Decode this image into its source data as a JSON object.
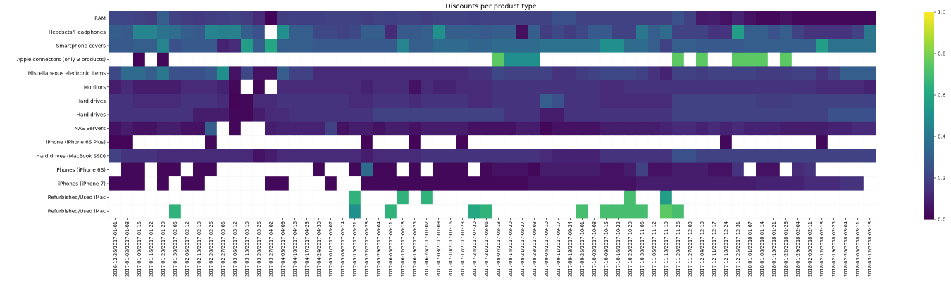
{
  "chart_data": {
    "type": "heatmap",
    "title": "Discounts per product type",
    "colormap": "viridis",
    "missing_color": "#ffffff",
    "vmin": 0.0,
    "vmax": 1.0,
    "colorbar_ticks": [
      "0.0",
      "0.2",
      "0.4",
      "0.6",
      "0.8",
      "1.0"
    ],
    "rows": [
      "RAM",
      "Headsets/Headphones",
      "Smartphone covers",
      "Apple connectors (only 3 products)",
      "Miscellaneous electronic items",
      "Monitors",
      "Hard drives",
      "Hard drives",
      "NAS Servers",
      "iPhone (iPhone 6S Plus)",
      "Hard drives (MacBook SSD)",
      "iPhones (iPhone 6S)",
      "iPhones (iPhone 7)",
      "Refurbished/Used iMac",
      "Refurbished/Used iMac"
    ],
    "columns": [
      "2016-12-26/2017-01-01",
      "2017-01-02/2017-01-08",
      "2017-01-09/2017-01-15",
      "2017-01-16/2017-01-22",
      "2017-01-23/2017-01-29",
      "2017-01-30/2017-02-05",
      "2017-02-06/2017-02-12",
      "2017-02-13/2017-02-19",
      "2017-02-20/2017-02-26",
      "2017-02-27/2017-03-05",
      "2017-03-06/2017-03-12",
      "2017-03-13/2017-03-19",
      "2017-03-20/2017-03-26",
      "2017-03-27/2017-04-02",
      "2017-04-03/2017-04-09",
      "2017-04-10/2017-04-16",
      "2017-04-17/2017-04-23",
      "2017-04-24/2017-04-30",
      "2017-05-01/2017-05-07",
      "2017-05-08/2017-05-14",
      "2017-05-15/2017-05-21",
      "2017-05-22/2017-05-28",
      "2017-05-29/2017-06-04",
      "2017-06-05/2017-06-11",
      "2017-06-12/2017-06-18",
      "2017-06-19/2017-06-25",
      "2017-06-26/2017-07-02",
      "2017-07-03/2017-07-09",
      "2017-07-10/2017-07-16",
      "2017-07-17/2017-07-23",
      "2017-07-24/2017-07-30",
      "2017-07-31/2017-08-06",
      "2017-08-07/2017-08-13",
      "2017-08-14/2017-08-20",
      "2017-08-21/2017-08-27",
      "2017-08-28/2017-09-03",
      "2017-09-04/2017-09-10",
      "2017-09-11/2017-09-17",
      "2017-09-18/2017-09-24",
      "2017-09-25/2017-10-01",
      "2017-10-02/2017-10-08",
      "2017-10-09/2017-10-15",
      "2017-10-16/2017-10-22",
      "2017-10-23/2017-10-29",
      "2017-10-30/2017-11-05",
      "2017-11-06/2017-11-12",
      "2017-11-13/2017-11-19",
      "2017-11-20/2017-11-26",
      "2017-11-27/2017-12-03",
      "2017-12-04/2017-12-10",
      "2017-12-11/2017-12-17",
      "2017-12-18/2017-12-24",
      "2017-12-25/2017-12-31",
      "2018-01-01/2018-01-07",
      "2018-01-08/2018-01-14",
      "2018-01-15/2018-01-21",
      "2018-01-22/2018-01-28",
      "2018-01-29/2018-02-04",
      "2018-02-05/2018-02-11",
      "2018-02-12/2018-02-18",
      "2018-02-19/2018-02-25",
      "2018-02-26/2018-03-04",
      "2018-03-05/2018-03-11",
      "2018-03-12/2018-03-18"
    ],
    "values": [
      [
        0.22,
        0.21,
        0.2,
        0.18,
        0.3,
        0.2,
        0.18,
        0.17,
        0.18,
        0.19,
        0.2,
        0.18,
        0.12,
        0.01,
        0.18,
        0.19,
        0.19,
        0.19,
        0.2,
        0.2,
        0.2,
        0.18,
        0.2,
        0.19,
        0.2,
        0.2,
        0.18,
        0.2,
        0.2,
        0.2,
        0.19,
        0.2,
        0.2,
        0.2,
        0.2,
        0.2,
        0.2,
        0.25,
        0.25,
        0.2,
        0.2,
        0.2,
        0.2,
        0.2,
        0.2,
        0.2,
        0.2,
        0.25,
        0.2,
        0.07,
        0.08,
        0.05,
        0.1,
        0.05,
        0.02,
        0.02,
        0.05,
        0.02,
        0.02,
        0.02,
        0.02,
        0.02,
        0.02,
        0.02
      ],
      [
        0.3,
        0.28,
        0.45,
        0.45,
        0.38,
        0.36,
        0.3,
        0.28,
        0.45,
        0.44,
        0.44,
        0.3,
        0.25,
        null,
        0.5,
        0.3,
        0.3,
        0.22,
        0.22,
        0.2,
        0.22,
        0.3,
        0.3,
        0.12,
        0.28,
        0.28,
        0.3,
        0.5,
        0.3,
        0.3,
        0.3,
        0.28,
        0.3,
        0.3,
        0.04,
        0.3,
        0.18,
        0.22,
        0.18,
        0.22,
        0.28,
        0.28,
        0.2,
        0.2,
        0.4,
        0.3,
        0.35,
        0.2,
        0.2,
        0.2,
        0.15,
        0.15,
        0.55,
        0.3,
        0.3,
        0.25,
        0.3,
        0.2,
        0.15,
        0.15,
        0.15,
        0.15,
        0.2,
        0.4
      ],
      [
        0.28,
        0.28,
        0.3,
        0.3,
        0.45,
        0.25,
        0.28,
        0.28,
        0.28,
        0.1,
        0.12,
        0.55,
        0.3,
        0.6,
        0.3,
        0.3,
        0.3,
        0.28,
        0.28,
        0.28,
        0.28,
        0.28,
        0.28,
        0.28,
        0.45,
        0.3,
        0.3,
        0.35,
        0.35,
        0.35,
        0.33,
        0.33,
        0.35,
        0.35,
        0.35,
        0.35,
        0.38,
        0.38,
        0.38,
        0.38,
        0.38,
        0.5,
        0.5,
        0.35,
        0.35,
        0.3,
        0.2,
        0.3,
        0.3,
        0.28,
        0.28,
        0.28,
        0.28,
        0.3,
        0.3,
        0.3,
        0.3,
        0.3,
        0.3,
        0.55,
        0.38,
        0.38,
        0.38,
        0.38
      ],
      [
        null,
        null,
        0.01,
        null,
        0.02,
        null,
        null,
        null,
        null,
        null,
        null,
        null,
        null,
        null,
        null,
        null,
        null,
        null,
        null,
        null,
        null,
        null,
        null,
        null,
        null,
        null,
        null,
        null,
        null,
        null,
        null,
        null,
        0.75,
        0.5,
        0.5,
        0.5,
        null,
        null,
        null,
        null,
        null,
        null,
        null,
        null,
        null,
        null,
        null,
        0.75,
        null,
        0.75,
        null,
        null,
        0.75,
        0.75,
        0.75,
        null,
        0.75,
        null,
        null,
        null,
        null,
        null,
        null,
        null
      ],
      [
        0.22,
        0.35,
        0.35,
        0.3,
        0.4,
        0.25,
        0.25,
        0.25,
        0.28,
        0.5,
        0.05,
        0.22,
        0.05,
        0.05,
        0.3,
        0.2,
        0.2,
        0.12,
        0.12,
        0.12,
        0.12,
        0.12,
        0.12,
        0.12,
        0.12,
        0.12,
        0.12,
        0.12,
        0.12,
        0.12,
        0.15,
        0.15,
        0.22,
        0.2,
        0.2,
        0.2,
        0.2,
        0.15,
        0.15,
        0.18,
        0.2,
        0.22,
        0.22,
        0.22,
        0.2,
        0.15,
        0.1,
        0.2,
        0.2,
        0.18,
        0.2,
        0.2,
        0.2,
        0.2,
        0.18,
        0.18,
        0.18,
        0.2,
        0.2,
        0.15,
        0.2,
        0.3,
        0.3,
        0.3
      ],
      [
        0.08,
        0.12,
        0.08,
        0.08,
        0.08,
        0.08,
        0.12,
        0.12,
        0.12,
        0.1,
        0.02,
        null,
        0.02,
        null,
        0.12,
        0.12,
        0.12,
        0.12,
        0.12,
        0.12,
        0.12,
        0.1,
        0.12,
        0.12,
        0.12,
        0.05,
        0.12,
        0.1,
        0.1,
        0.12,
        0.12,
        0.12,
        0.15,
        0.15,
        0.15,
        0.15,
        0.15,
        0.15,
        0.15,
        0.15,
        0.15,
        0.12,
        0.12,
        0.15,
        0.15,
        0.15,
        0.15,
        0.15,
        0.15,
        0.15,
        0.15,
        0.15,
        0.15,
        0.15,
        0.15,
        0.15,
        0.15,
        0.15,
        0.15,
        0.12,
        0.12,
        0.12,
        0.12,
        0.1
      ],
      [
        0.15,
        0.15,
        0.12,
        0.12,
        0.12,
        0.12,
        0.15,
        0.15,
        0.15,
        0.12,
        0.01,
        0.02,
        0.12,
        0.12,
        0.15,
        0.15,
        0.15,
        0.15,
        0.15,
        0.15,
        0.12,
        0.12,
        0.15,
        0.15,
        0.15,
        0.12,
        0.15,
        0.15,
        0.15,
        0.15,
        0.12,
        0.12,
        0.15,
        0.15,
        0.15,
        0.15,
        0.3,
        0.25,
        0.15,
        0.15,
        0.15,
        0.12,
        0.12,
        0.12,
        0.12,
        0.12,
        0.12,
        0.2,
        0.2,
        0.2,
        0.2,
        0.2,
        0.2,
        0.2,
        0.18,
        0.18,
        0.18,
        0.2,
        0.2,
        0.2,
        0.2,
        0.2,
        0.2,
        0.2
      ],
      [
        0.15,
        0.15,
        0.15,
        0.15,
        0.15,
        0.15,
        0.15,
        0.08,
        0.08,
        0.08,
        0.02,
        0.02,
        0.08,
        0.12,
        0.12,
        0.15,
        0.15,
        0.15,
        0.15,
        0.15,
        0.15,
        0.15,
        0.2,
        0.2,
        0.2,
        0.2,
        0.2,
        0.2,
        0.2,
        0.2,
        0.2,
        0.2,
        0.2,
        0.15,
        0.15,
        0.15,
        0.08,
        0.08,
        0.15,
        0.15,
        0.15,
        0.15,
        0.15,
        0.15,
        0.15,
        0.15,
        0.15,
        0.2,
        0.2,
        0.2,
        0.2,
        0.2,
        0.2,
        0.2,
        0.2,
        0.2,
        0.2,
        0.2,
        0.2,
        0.2,
        0.25,
        0.25,
        0.25,
        0.25
      ],
      [
        0.05,
        0.08,
        0.05,
        0.05,
        0.08,
        0.08,
        0.05,
        0.05,
        0.3,
        null,
        0.02,
        null,
        null,
        0.08,
        0.1,
        0.1,
        0.1,
        0.1,
        0.2,
        0.05,
        0.08,
        0.08,
        0.05,
        0.08,
        0.08,
        0.05,
        0.08,
        0.08,
        0.08,
        0.08,
        0.05,
        0.05,
        0.05,
        0.05,
        0.08,
        0.08,
        0.02,
        0.05,
        0.05,
        0.05,
        0.05,
        0.08,
        0.08,
        0.08,
        0.08,
        0.08,
        0.1,
        0.12,
        0.12,
        0.1,
        0.12,
        0.1,
        0.12,
        0.1,
        0.1,
        0.1,
        0.08,
        0.08,
        0.08,
        0.08,
        0.1,
        0.1,
        0.12,
        0.12
      ],
      [
        0.01,
        0.01,
        null,
        null,
        null,
        null,
        null,
        null,
        0.02,
        null,
        null,
        null,
        null,
        null,
        null,
        null,
        null,
        null,
        null,
        null,
        null,
        0.01,
        null,
        null,
        null,
        0.01,
        null,
        null,
        null,
        0.01,
        null,
        null,
        null,
        null,
        null,
        null,
        null,
        null,
        null,
        null,
        null,
        null,
        null,
        null,
        null,
        null,
        null,
        null,
        null,
        null,
        null,
        0.02,
        null,
        null,
        null,
        null,
        null,
        null,
        null,
        0.02,
        null,
        null,
        null,
        null
      ],
      [
        0.2,
        0.15,
        0.15,
        0.15,
        0.12,
        0.12,
        0.12,
        0.12,
        0.12,
        0.12,
        0.12,
        0.12,
        0.05,
        0.08,
        0.12,
        0.12,
        0.12,
        0.12,
        0.12,
        0.12,
        0.12,
        0.08,
        0.12,
        0.12,
        0.12,
        0.12,
        0.15,
        0.15,
        0.15,
        0.15,
        0.15,
        0.15,
        0.15,
        0.15,
        0.15,
        0.15,
        0.12,
        0.1,
        0.1,
        0.1,
        0.1,
        0.15,
        0.15,
        0.15,
        0.15,
        0.15,
        0.15,
        0.25,
        0.25,
        0.2,
        0.2,
        0.2,
        0.2,
        0.2,
        0.2,
        0.2,
        0.2,
        0.2,
        0.2,
        0.2,
        0.2,
        0.2,
        0.2,
        0.2
      ],
      [
        null,
        0.02,
        0.02,
        null,
        0.02,
        0.02,
        null,
        0.02,
        0.02,
        null,
        null,
        null,
        null,
        null,
        null,
        null,
        null,
        0.02,
        null,
        null,
        0.02,
        0.35,
        0.02,
        0.02,
        null,
        0.02,
        null,
        0.02,
        0.02,
        0.02,
        null,
        0.02,
        0.05,
        0.05,
        0.05,
        0.02,
        0.08,
        0.08,
        0.08,
        0.08,
        0.08,
        0.05,
        0.05,
        0.08,
        0.2,
        0.05,
        0.05,
        0.08,
        0.08,
        0.08,
        0.05,
        0.05,
        0.15,
        null,
        0.05,
        0.05,
        null,
        0.12,
        0.15,
        null,
        null,
        null,
        null,
        null
      ],
      [
        0.02,
        0.02,
        0.02,
        null,
        0.02,
        null,
        0.02,
        0.02,
        null,
        null,
        null,
        null,
        null,
        0.02,
        0.02,
        null,
        null,
        null,
        0.02,
        null,
        null,
        0.02,
        0.02,
        0.02,
        0.02,
        0.02,
        0.02,
        0.02,
        0.02,
        0.02,
        0.02,
        0.02,
        0.02,
        0.02,
        0.02,
        0.05,
        0.05,
        0.05,
        0.05,
        0.05,
        0.05,
        0.05,
        0.05,
        0.05,
        0.08,
        0.08,
        0.08,
        0.08,
        0.08,
        0.08,
        0.08,
        0.08,
        0.08,
        0.08,
        0.1,
        0.1,
        0.1,
        0.1,
        0.12,
        0.12,
        0.12,
        0.15,
        0.15,
        null
      ],
      [
        null,
        null,
        null,
        null,
        null,
        null,
        null,
        null,
        null,
        null,
        null,
        null,
        null,
        null,
        null,
        null,
        null,
        null,
        null,
        null,
        0.65,
        null,
        null,
        null,
        0.65,
        null,
        0.65,
        null,
        null,
        null,
        null,
        null,
        null,
        null,
        null,
        null,
        null,
        null,
        null,
        null,
        null,
        null,
        null,
        0.7,
        null,
        null,
        0.55,
        null,
        null,
        null,
        null,
        null,
        null,
        null,
        null,
        null,
        null,
        null,
        null,
        null,
        null,
        null,
        null,
        null
      ],
      [
        null,
        null,
        null,
        null,
        null,
        0.65,
        null,
        null,
        null,
        null,
        null,
        null,
        null,
        null,
        null,
        null,
        null,
        null,
        null,
        null,
        0.5,
        null,
        null,
        0.65,
        null,
        null,
        null,
        null,
        null,
        null,
        0.6,
        0.65,
        null,
        null,
        null,
        null,
        null,
        null,
        null,
        0.7,
        null,
        0.7,
        0.7,
        0.7,
        0.7,
        null,
        0.75,
        0.7,
        null,
        null,
        null,
        null,
        null,
        null,
        null,
        null,
        null,
        null,
        null,
        null,
        null,
        null,
        null,
        null
      ]
    ]
  }
}
